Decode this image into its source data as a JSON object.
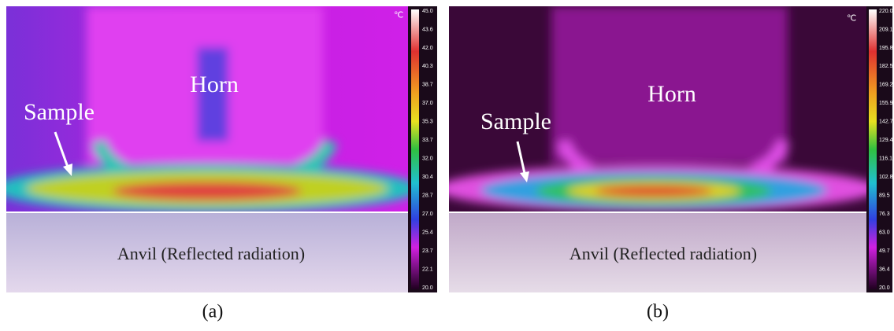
{
  "panels": [
    {
      "caption": "(a)",
      "labels": {
        "horn": "Horn",
        "sample": "Sample",
        "anvil": "Anvil (Reflected radiation)"
      },
      "colorbar": {
        "unit": "℃",
        "ticks": [
          "45.0",
          "43.6",
          "42.0",
          "40.3",
          "38.7",
          "37.0",
          "35.3",
          "33.7",
          "32.0",
          "30.4",
          "28.7",
          "27.0",
          "25.4",
          "23.7",
          "22.1",
          "20.0"
        ]
      }
    },
    {
      "caption": "(b)",
      "labels": {
        "horn": "Horn",
        "sample": "Sample",
        "anvil": "Anvil (Reflected radiation)"
      },
      "colorbar": {
        "unit": "℃",
        "ticks": [
          "220.0",
          "209.1",
          "195.8",
          "182.5",
          "169.2",
          "155.9",
          "142.7",
          "129.4",
          "116.1",
          "102.8",
          "89.5",
          "76.3",
          "63.0",
          "49.7",
          "36.4",
          "20.0"
        ]
      }
    }
  ]
}
